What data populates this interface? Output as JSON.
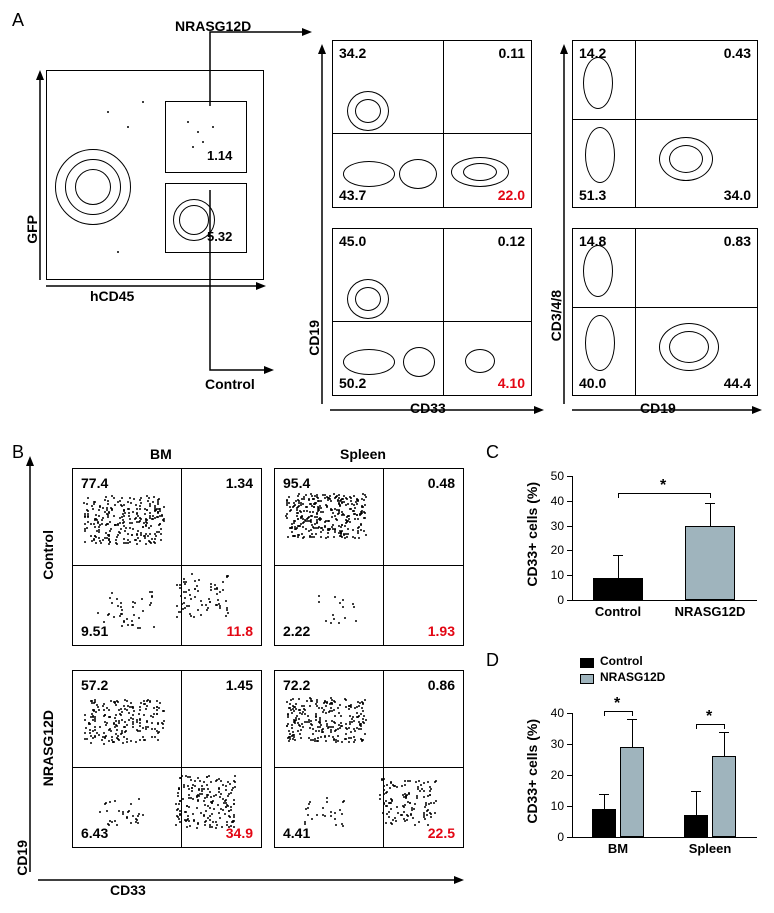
{
  "labels": {
    "A": "A",
    "B": "B",
    "C": "C",
    "D": "D"
  },
  "panelA": {
    "condition_top": "NRASG12D",
    "condition_bottom": "Control",
    "scatter": {
      "y_axis": "GFP",
      "x_axis": "hCD45",
      "gate_top": "1.14",
      "gate_bottom": "5.32"
    },
    "cd19_cd33": {
      "y_axis": "CD19",
      "x_axis": "CD33",
      "top": {
        "ul": "34.2",
        "ur": "0.11",
        "ll": "43.7",
        "lr": "22.0"
      },
      "bot": {
        "ul": "45.0",
        "ur": "0.12",
        "ll": "50.2",
        "lr": "4.10"
      },
      "lr_color": "#e30613"
    },
    "cd348_cd19": {
      "y_axis": "CD3/4/8",
      "x_axis": "CD19",
      "top": {
        "ul": "14.2",
        "ur": "0.43",
        "ll": "51.3",
        "lr": "34.0"
      },
      "bot": {
        "ul": "14.8",
        "ur": "0.83",
        "ll": "40.0",
        "lr": "44.4"
      }
    }
  },
  "panelB": {
    "col_bm": "BM",
    "col_spleen": "Spleen",
    "row_control": "Control",
    "row_nras": "NRASG12D",
    "y_axis": "CD19",
    "x_axis": "CD33",
    "lr_color": "#e30613",
    "control_bm": {
      "ul": "77.4",
      "ur": "1.34",
      "ll": "9.51",
      "lr": "11.8"
    },
    "control_spln": {
      "ul": "95.4",
      "ur": "0.48",
      "ll": "2.22",
      "lr": "1.93"
    },
    "nras_bm": {
      "ul": "57.2",
      "ur": "1.45",
      "ll": "6.43",
      "lr": "34.9"
    },
    "nras_spln": {
      "ul": "72.2",
      "ur": "0.86",
      "ll": "4.41",
      "lr": "22.5"
    }
  },
  "panelC": {
    "type": "bar",
    "ylabel": "CD33+ cells (%)",
    "ylim": [
      0,
      50
    ],
    "ytick_step": 10,
    "categories": [
      "Control",
      "NRASG12D"
    ],
    "values": [
      9,
      30
    ],
    "errors": [
      9,
      9
    ],
    "colors": [
      "#000000",
      "#9fb4bd"
    ],
    "sig": "*"
  },
  "panelD": {
    "type": "grouped-bar",
    "ylabel": "CD33+ cells (%)",
    "ylim": [
      0,
      40
    ],
    "ytick_step": 10,
    "groups": [
      "BM",
      "Spleen"
    ],
    "series": [
      {
        "name": "Control",
        "color": "#000000",
        "values": [
          9,
          7
        ],
        "errors": [
          5,
          8
        ]
      },
      {
        "name": "NRASG12D",
        "color": "#9fb4bd",
        "values": [
          29,
          26
        ],
        "errors": [
          9,
          8
        ]
      }
    ],
    "sig": "*"
  },
  "legend": {
    "control": "Control",
    "nras": "NRASG12D"
  }
}
